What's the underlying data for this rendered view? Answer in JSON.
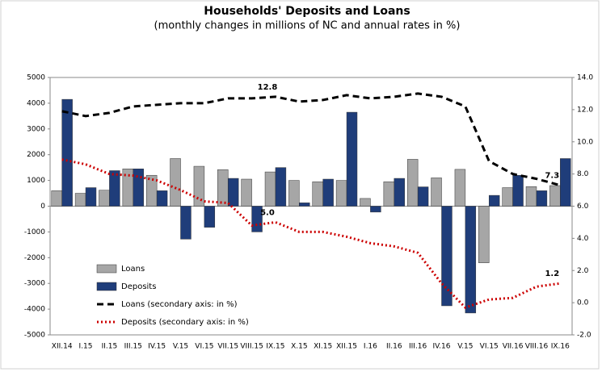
{
  "chart_data": {
    "type": "bar_line",
    "title": "Households' Deposits and Loans",
    "subtitle": "(monthly changes in millions of NC and annual rates in %)",
    "categories": [
      "XII.14",
      "I.15",
      "II.15",
      "III.15",
      "IV.15",
      "V.15",
      "VI.15",
      "VII.15",
      "VIII.15",
      "IX.15",
      "X.15",
      "XI.15",
      "XII.15",
      "I.16",
      "II.16",
      "III.16",
      "IV.16",
      "V.15",
      "VI.15",
      "VII.16",
      "VIII.16",
      "IX.16"
    ],
    "series": [
      {
        "name": "Loans",
        "type": "bar",
        "color": "#a6a6a6",
        "values": [
          600,
          500,
          620,
          1450,
          1200,
          1850,
          1550,
          1420,
          1050,
          1330,
          1000,
          950,
          1000,
          300,
          950,
          1820,
          1100,
          1430,
          -2200,
          720,
          760,
          800
        ]
      },
      {
        "name": "Deposits",
        "type": "bar",
        "color": "#1f3d7a",
        "values": [
          4150,
          720,
          1380,
          1450,
          600,
          -1280,
          -820,
          1080,
          -1000,
          1500,
          130,
          1050,
          3650,
          -230,
          1080,
          750,
          -3870,
          -4150,
          420,
          1200,
          600,
          1850
        ]
      },
      {
        "name": "Loans (secondary axis: in %)",
        "type": "line",
        "axis": "y2",
        "color": "#000000",
        "dash": "8,5",
        "values": [
          11.9,
          11.6,
          11.8,
          12.2,
          12.3,
          12.4,
          12.4,
          12.7,
          12.7,
          12.8,
          12.5,
          12.6,
          12.9,
          12.7,
          12.8,
          13.0,
          12.8,
          12.2,
          8.8,
          8.0,
          7.7,
          7.3
        ],
        "value_labels": [
          null,
          null,
          null,
          null,
          null,
          null,
          null,
          null,
          null,
          "12.8",
          null,
          null,
          null,
          null,
          null,
          null,
          null,
          null,
          null,
          null,
          null,
          "7.3"
        ]
      },
      {
        "name": "Deposits (secondary axis: in %)",
        "type": "line",
        "axis": "y2",
        "color": "#cc0000",
        "dash": "2,3",
        "values": [
          8.9,
          8.6,
          8.0,
          7.9,
          7.6,
          7.0,
          6.3,
          6.2,
          4.8,
          5.0,
          4.4,
          4.4,
          4.1,
          3.7,
          3.5,
          3.1,
          1.2,
          -0.3,
          0.2,
          0.3,
          1.0,
          1.2
        ],
        "value_labels": [
          null,
          null,
          null,
          null,
          null,
          null,
          null,
          null,
          null,
          "5.0",
          null,
          null,
          null,
          null,
          null,
          null,
          null,
          null,
          null,
          null,
          null,
          "1.2"
        ]
      }
    ],
    "ylim": [
      -5000,
      5000
    ],
    "yticks": [
      -5000,
      -4000,
      -3000,
      -2000,
      -1000,
      0,
      1000,
      2000,
      3000,
      4000,
      5000
    ],
    "y2lim": [
      -2,
      14
    ],
    "y2ticks": [
      {
        "value": -2,
        "label": "-2.0"
      },
      {
        "value": 0,
        "label": "0.0"
      },
      {
        "value": 2,
        "label": "2.0"
      },
      {
        "value": 4,
        "label": "4.0"
      },
      {
        "value": 6,
        "label": "6.0"
      },
      {
        "value": 8,
        "label": "8.0"
      },
      {
        "value": 10,
        "label": "10.0"
      },
      {
        "value": 12,
        "label": "12.0"
      },
      {
        "value": 14,
        "label": "14.0"
      }
    ],
    "legend": "lower left"
  }
}
